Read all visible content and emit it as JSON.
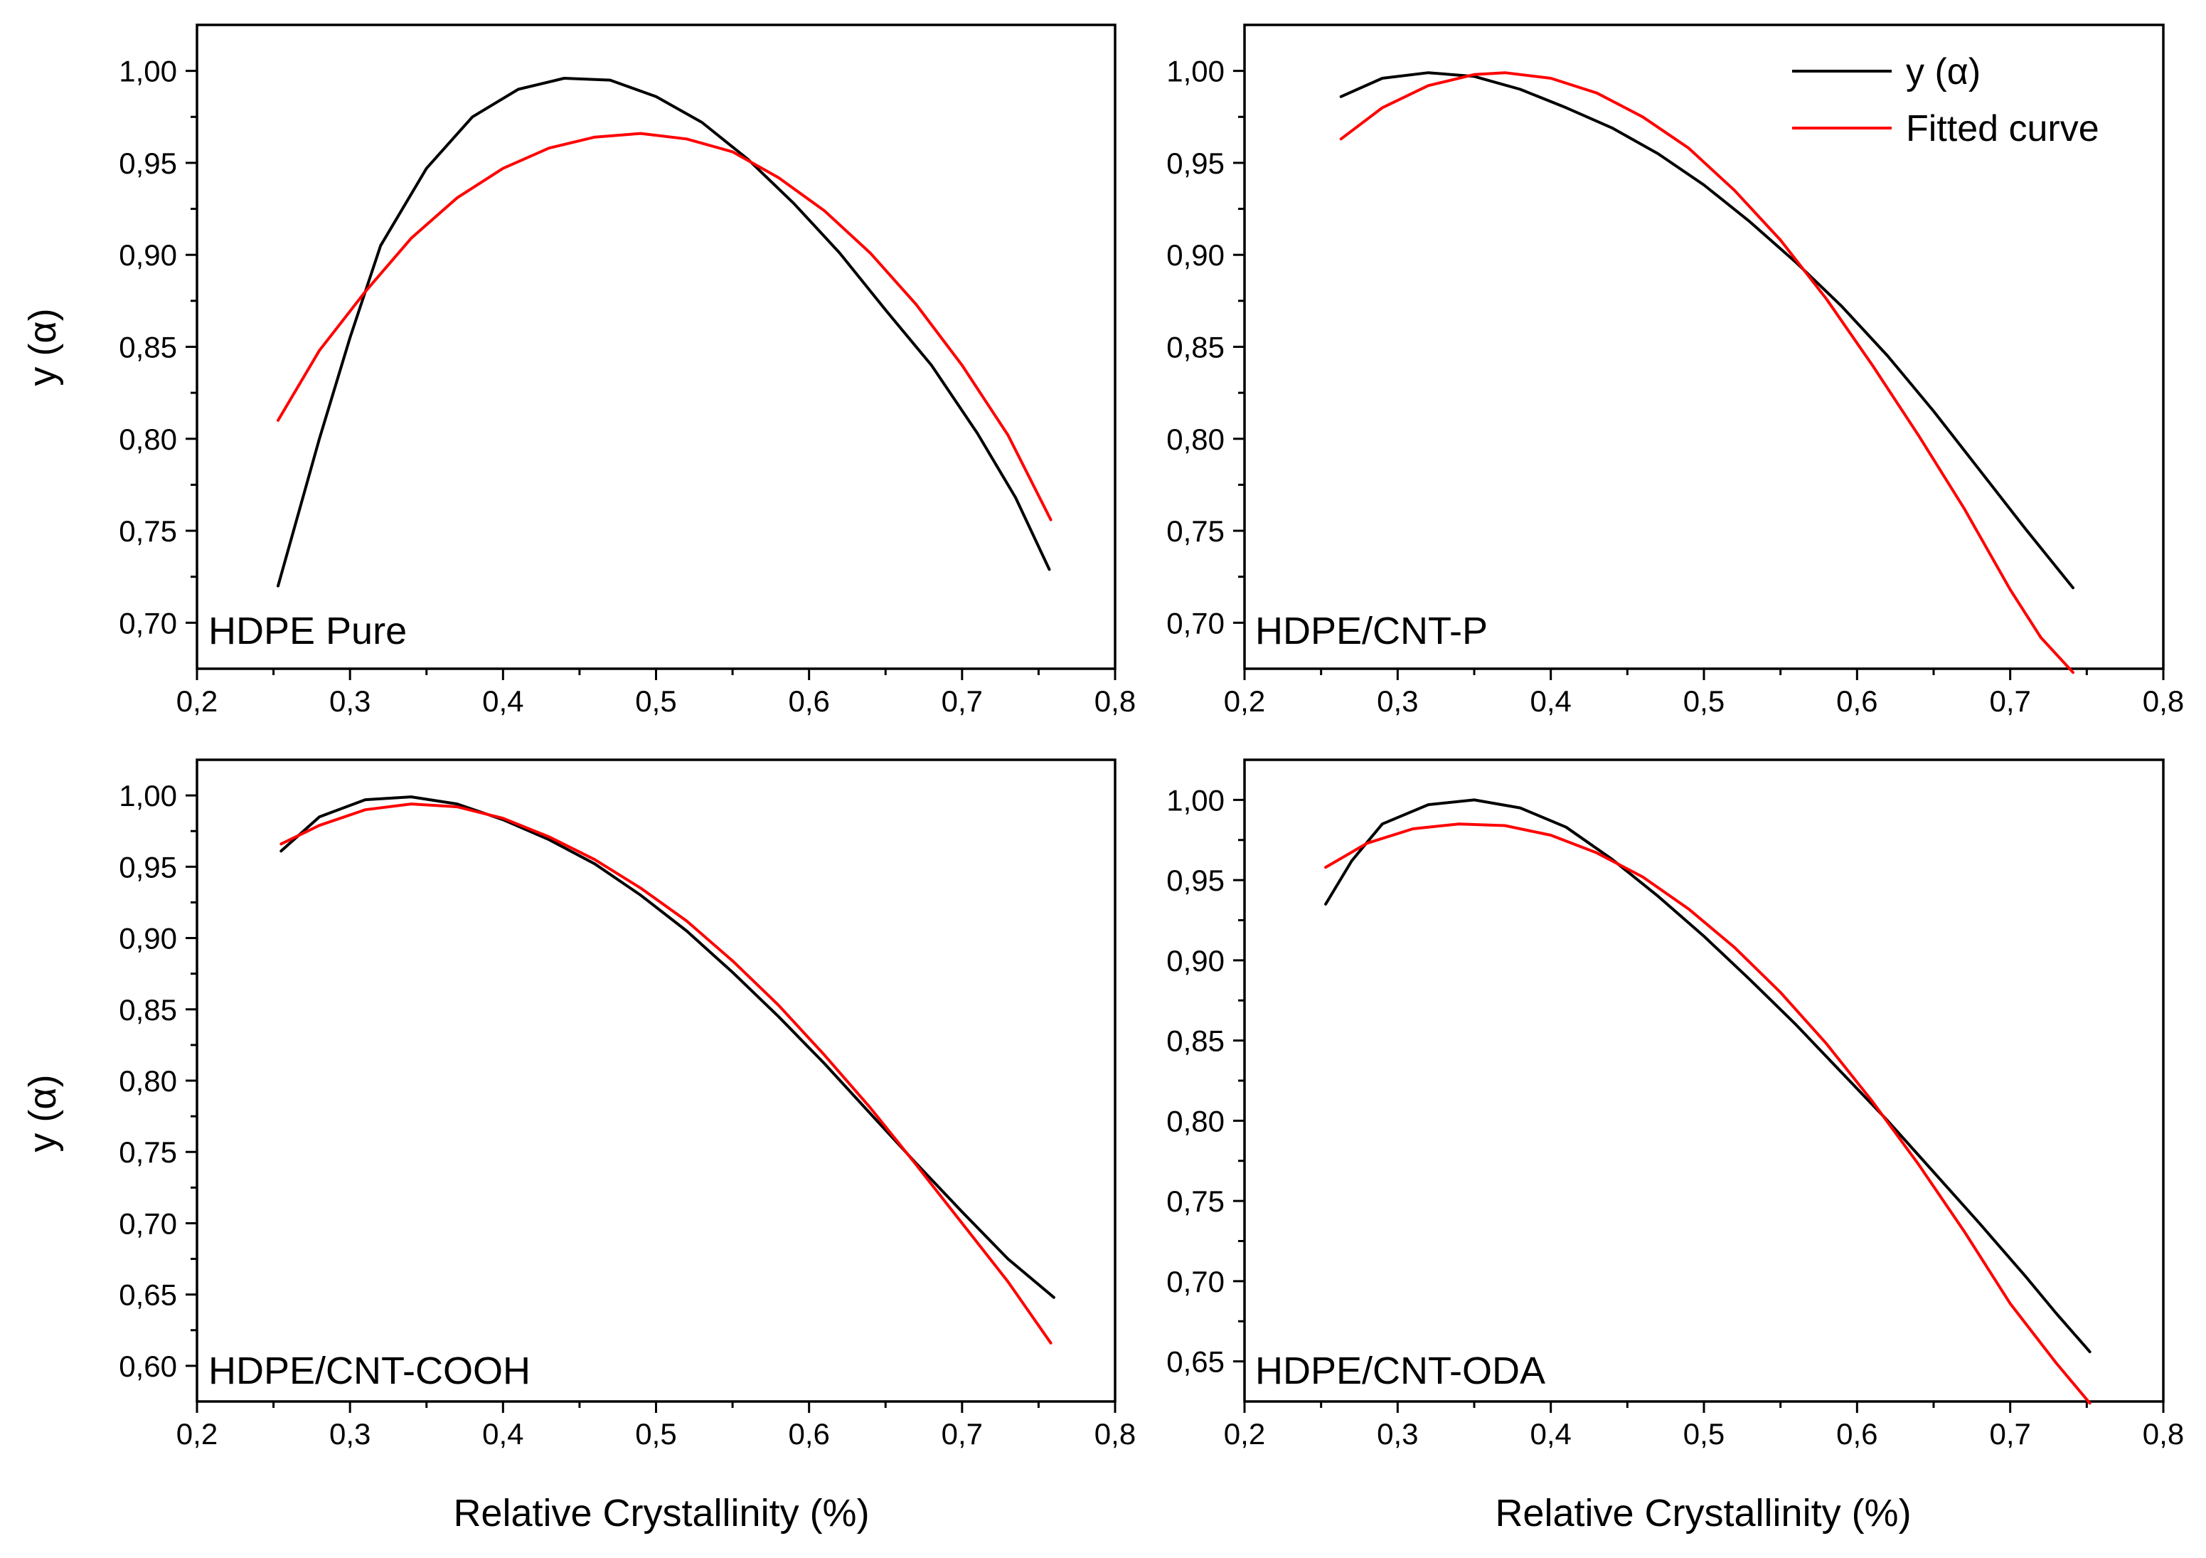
{
  "legend": {
    "entries": [
      {
        "label": "y (α)",
        "color": "#000000"
      },
      {
        "label": "Fitted curve",
        "color": "#ff0000"
      }
    ]
  },
  "chart_data": [
    {
      "type": "line",
      "panel_label": "HDPE Pure",
      "xlabel": "",
      "ylabel": "y (α)",
      "xlim": [
        0.2,
        0.8
      ],
      "ylim": [
        0.675,
        1.025
      ],
      "x_ticks": [
        "0,2",
        "0,3",
        "0,4",
        "0,5",
        "0,6",
        "0,7",
        "0,8"
      ],
      "y_ticks": [
        "0,70",
        "0,75",
        "0,80",
        "0,85",
        "0,90",
        "0,95",
        "1,00"
      ],
      "y_tick_values": [
        0.7,
        0.75,
        0.8,
        0.85,
        0.9,
        0.95,
        1.0
      ],
      "series": [
        {
          "name": "y (α)",
          "color": "#000000",
          "x": [
            0.253,
            0.28,
            0.3,
            0.32,
            0.35,
            0.38,
            0.41,
            0.44,
            0.47,
            0.5,
            0.53,
            0.56,
            0.59,
            0.62,
            0.65,
            0.68,
            0.71,
            0.735,
            0.757
          ],
          "y": [
            0.72,
            0.8,
            0.855,
            0.905,
            0.947,
            0.975,
            0.99,
            0.996,
            0.995,
            0.986,
            0.972,
            0.952,
            0.928,
            0.901,
            0.87,
            0.84,
            0.803,
            0.768,
            0.729
          ]
        },
        {
          "name": "Fitted curve",
          "color": "#ff0000",
          "x": [
            0.253,
            0.28,
            0.31,
            0.34,
            0.37,
            0.4,
            0.43,
            0.46,
            0.49,
            0.52,
            0.55,
            0.58,
            0.61,
            0.64,
            0.67,
            0.7,
            0.73,
            0.758
          ],
          "y": [
            0.81,
            0.848,
            0.88,
            0.909,
            0.931,
            0.947,
            0.958,
            0.964,
            0.966,
            0.963,
            0.956,
            0.942,
            0.924,
            0.901,
            0.873,
            0.84,
            0.802,
            0.756
          ]
        }
      ]
    },
    {
      "type": "line",
      "panel_label": "HDPE/CNT-P",
      "xlabel": "",
      "ylabel": "",
      "xlim": [
        0.2,
        0.8
      ],
      "ylim": [
        0.675,
        1.025
      ],
      "x_ticks": [
        "0,2",
        "0,3",
        "0,4",
        "0,5",
        "0,6",
        "0,7",
        "0,8"
      ],
      "y_ticks": [
        "0,70",
        "0,75",
        "0,80",
        "0,85",
        "0,90",
        "0,95",
        "1,00"
      ],
      "y_tick_values": [
        0.7,
        0.75,
        0.8,
        0.85,
        0.9,
        0.95,
        1.0
      ],
      "legend_location": "top-right",
      "series": [
        {
          "name": "y (α)",
          "color": "#000000",
          "x": [
            0.263,
            0.29,
            0.32,
            0.35,
            0.38,
            0.41,
            0.44,
            0.47,
            0.5,
            0.53,
            0.56,
            0.59,
            0.62,
            0.65,
            0.68,
            0.71,
            0.741
          ],
          "y": [
            0.986,
            0.996,
            0.999,
            0.997,
            0.99,
            0.98,
            0.969,
            0.955,
            0.938,
            0.918,
            0.896,
            0.872,
            0.845,
            0.815,
            0.783,
            0.751,
            0.719
          ]
        },
        {
          "name": "Fitted curve",
          "color": "#ff0000",
          "x": [
            0.263,
            0.29,
            0.32,
            0.35,
            0.37,
            0.4,
            0.43,
            0.46,
            0.49,
            0.52,
            0.55,
            0.58,
            0.61,
            0.64,
            0.67,
            0.7,
            0.72,
            0.741
          ],
          "y": [
            0.963,
            0.98,
            0.992,
            0.998,
            0.999,
            0.996,
            0.988,
            0.975,
            0.958,
            0.935,
            0.908,
            0.876,
            0.84,
            0.802,
            0.762,
            0.718,
            0.692,
            0.673
          ]
        }
      ]
    },
    {
      "type": "line",
      "panel_label": "HDPE/CNT-COOH",
      "xlabel": "Relative Crystallinity (%)",
      "ylabel": "y (α)",
      "xlim": [
        0.2,
        0.8
      ],
      "ylim": [
        0.575,
        1.025
      ],
      "x_ticks": [
        "0,2",
        "0,3",
        "0,4",
        "0,5",
        "0,6",
        "0,7",
        "0,8"
      ],
      "y_ticks": [
        "0,60",
        "0,65",
        "0,70",
        "0,75",
        "0,80",
        "0,85",
        "0,90",
        "0,95",
        "1,00"
      ],
      "y_tick_values": [
        0.6,
        0.65,
        0.7,
        0.75,
        0.8,
        0.85,
        0.9,
        0.95,
        1.0
      ],
      "series": [
        {
          "name": "y (α)",
          "color": "#000000",
          "x": [
            0.255,
            0.28,
            0.31,
            0.34,
            0.37,
            0.4,
            0.43,
            0.46,
            0.49,
            0.52,
            0.55,
            0.58,
            0.61,
            0.64,
            0.67,
            0.7,
            0.73,
            0.76
          ],
          "y": [
            0.961,
            0.985,
            0.997,
            0.999,
            0.994,
            0.983,
            0.969,
            0.952,
            0.93,
            0.905,
            0.876,
            0.845,
            0.812,
            0.777,
            0.742,
            0.708,
            0.675,
            0.648
          ]
        },
        {
          "name": "Fitted curve",
          "color": "#ff0000",
          "x": [
            0.255,
            0.28,
            0.31,
            0.34,
            0.37,
            0.4,
            0.43,
            0.46,
            0.49,
            0.52,
            0.55,
            0.58,
            0.61,
            0.64,
            0.67,
            0.7,
            0.73,
            0.758
          ],
          "y": [
            0.966,
            0.979,
            0.99,
            0.994,
            0.992,
            0.984,
            0.971,
            0.955,
            0.935,
            0.912,
            0.884,
            0.853,
            0.818,
            0.781,
            0.741,
            0.7,
            0.659,
            0.616
          ]
        }
      ]
    },
    {
      "type": "line",
      "panel_label": "HDPE/CNT-ODA",
      "xlabel": "Relative Crystallinity (%)",
      "ylabel": "",
      "xlim": [
        0.2,
        0.8
      ],
      "ylim": [
        0.625,
        1.025
      ],
      "x_ticks": [
        "0,2",
        "0,3",
        "0,4",
        "0,5",
        "0,6",
        "0,7",
        "0,8"
      ],
      "y_ticks": [
        "0,65",
        "0,70",
        "0,75",
        "0,80",
        "0,85",
        "0,90",
        "0,95",
        "1,00"
      ],
      "y_tick_values": [
        0.65,
        0.7,
        0.75,
        0.8,
        0.85,
        0.9,
        0.95,
        1.0
      ],
      "series": [
        {
          "name": "y (α)",
          "color": "#000000",
          "x": [
            0.253,
            0.27,
            0.29,
            0.32,
            0.35,
            0.38,
            0.41,
            0.44,
            0.47,
            0.5,
            0.53,
            0.56,
            0.59,
            0.62,
            0.65,
            0.68,
            0.71,
            0.73,
            0.752
          ],
          "y": [
            0.935,
            0.962,
            0.985,
            0.997,
            1.0,
            0.995,
            0.983,
            0.963,
            0.94,
            0.915,
            0.888,
            0.86,
            0.83,
            0.8,
            0.768,
            0.736,
            0.703,
            0.68,
            0.656
          ]
        },
        {
          "name": "Fitted curve",
          "color": "#ff0000",
          "x": [
            0.253,
            0.28,
            0.31,
            0.34,
            0.37,
            0.4,
            0.43,
            0.46,
            0.49,
            0.52,
            0.55,
            0.58,
            0.61,
            0.64,
            0.67,
            0.7,
            0.73,
            0.752
          ],
          "y": [
            0.958,
            0.973,
            0.982,
            0.985,
            0.984,
            0.978,
            0.967,
            0.952,
            0.932,
            0.908,
            0.88,
            0.848,
            0.812,
            0.773,
            0.731,
            0.686,
            0.649,
            0.624
          ]
        }
      ]
    }
  ]
}
